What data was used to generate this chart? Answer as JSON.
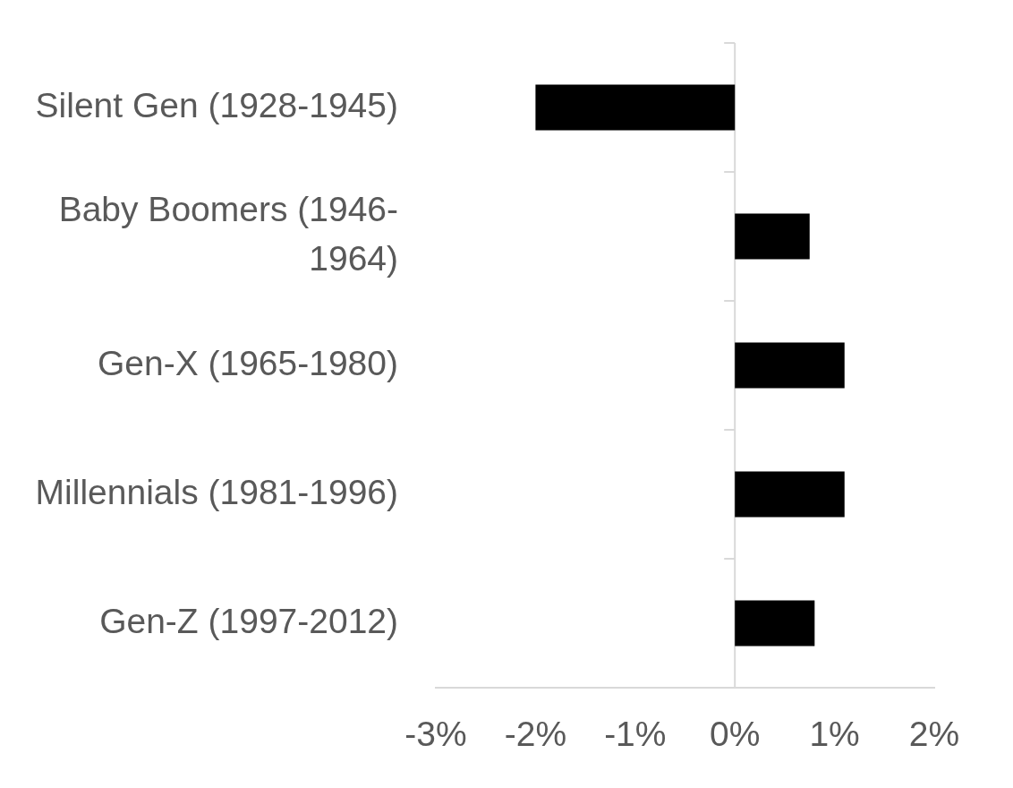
{
  "chart_data": {
    "type": "bar",
    "orientation": "horizontal",
    "categories": [
      "Silent Gen (1928-1945)",
      "Baby Boomers (1946-1964)",
      "Gen-X (1965-1980)",
      "Millennials (1981-1996)",
      "Gen-Z (1997-2012)"
    ],
    "values": [
      -2.0,
      0.75,
      1.1,
      1.1,
      0.8
    ],
    "color": "#000000",
    "xlim": [
      -3,
      2
    ],
    "xticks": [
      {
        "value": -3,
        "label": "-3%"
      },
      {
        "value": -2,
        "label": "-2%"
      },
      {
        "value": -1,
        "label": "-1%"
      },
      {
        "value": 0,
        "label": "0%"
      },
      {
        "value": 1,
        "label": "1%"
      },
      {
        "value": 2,
        "label": "2%"
      }
    ]
  }
}
